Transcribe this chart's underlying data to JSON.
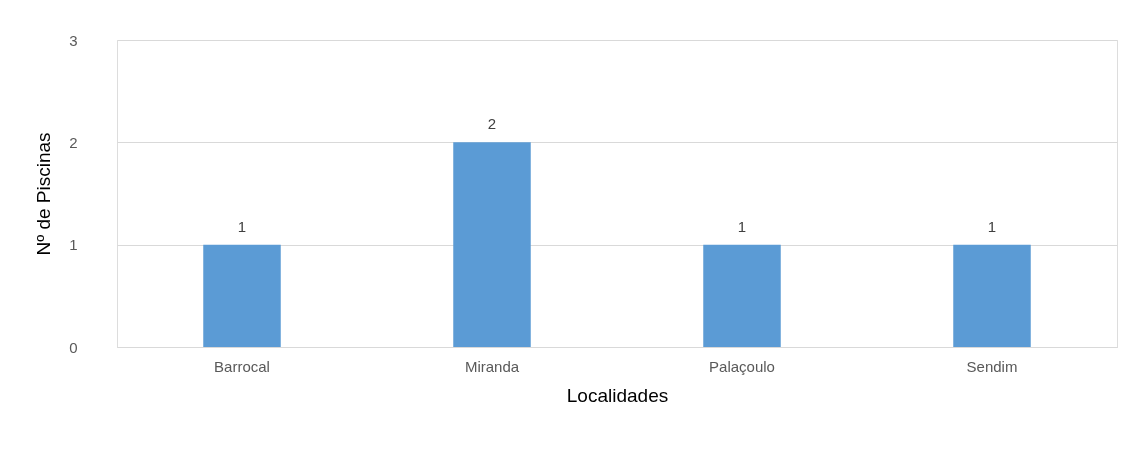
{
  "chart_data": {
    "type": "bar",
    "xlabel": "Localidades",
    "ylabel": "Nº de Piscinas",
    "categories": [
      "Barrocal",
      "Miranda",
      "Palaçoulo",
      "Sendim"
    ],
    "values": [
      1,
      2,
      1,
      1
    ],
    "color": "#5b9bd5",
    "ylim": [
      0,
      3
    ],
    "yticks": [
      0,
      1,
      2,
      3
    ],
    "grid": "y",
    "data_labels": true
  }
}
